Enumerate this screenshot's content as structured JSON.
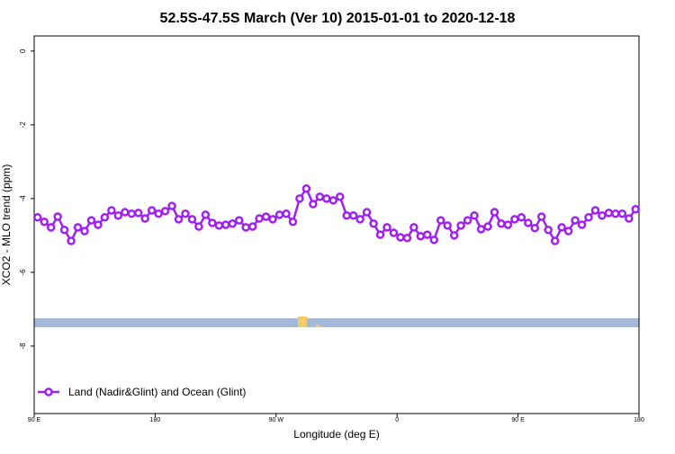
{
  "chart_data": {
    "type": "line",
    "title": "52.5S-47.5S March (Ver 10)   2015-01-01 to 2020-12-18",
    "x_label": "Longitude (deg E)",
    "y_label": "XCO2 - MLO trend (ppm)",
    "x": [
      92.5,
      97.5,
      102.5,
      107.5,
      112.5,
      117.5,
      122.5,
      127.5,
      132.5,
      137.5,
      142.5,
      147.5,
      152.5,
      157.5,
      162.5,
      167.5,
      172.5,
      177.5,
      182.5,
      187.5,
      192.5,
      197.5,
      202.5,
      207.5,
      212.5,
      217.5,
      222.5,
      227.5,
      232.5,
      237.5,
      242.5,
      247.5,
      252.5,
      257.5,
      262.5,
      267.5,
      272.5,
      277.5,
      282.5,
      287.5,
      292.5,
      297.5,
      302.5,
      307.5,
      312.5,
      317.5,
      322.5,
      327.5,
      332.5,
      337.5,
      342.5,
      347.5,
      352.5,
      357.5,
      362.5,
      367.5,
      372.5,
      377.5,
      382.5,
      387.5,
      392.5,
      397.5,
      402.5,
      407.5,
      412.5,
      417.5,
      422.5,
      427.5,
      432.5,
      437.5,
      442.5,
      447.5,
      452.5,
      457.5,
      462.5,
      467.5,
      472.5,
      477.5,
      482.5,
      487.5,
      492.5,
      497.5,
      502.5,
      507.5,
      512.5,
      517.5,
      522.5,
      527.5,
      532.5,
      537.5
    ],
    "series": [
      {
        "name": "Land (Nadir&Glint) and Ocean (Glint)",
        "color": "#a020f0",
        "values": [
          -4.51,
          -4.63,
          -4.78,
          -4.49,
          -4.85,
          -5.15,
          -4.78,
          -4.88,
          -4.59,
          -4.71,
          -4.51,
          -4.32,
          -4.46,
          -4.37,
          -4.41,
          -4.39,
          -4.54,
          -4.32,
          -4.41,
          -4.34,
          -4.2,
          -4.56,
          -4.41,
          -4.56,
          -4.76,
          -4.44,
          -4.66,
          -4.73,
          -4.71,
          -4.68,
          -4.59,
          -4.78,
          -4.76,
          -4.54,
          -4.49,
          -4.56,
          -4.44,
          -4.41,
          -4.63,
          -4.0,
          -3.73,
          -4.15,
          -3.95,
          -4.0,
          -4.05,
          -3.95,
          -4.46,
          -4.46,
          -4.56,
          -4.37,
          -4.68,
          -4.98,
          -4.78,
          -4.93,
          -5.05,
          -5.07,
          -4.78,
          -5.02,
          -4.98,
          -5.12,
          -4.59,
          -4.73,
          -5.0,
          -4.73,
          -4.59,
          -4.46,
          -4.83,
          -4.76,
          -4.37,
          -4.68,
          -4.71,
          -4.56,
          -4.51,
          -4.66,
          -4.8,
          -4.49,
          -4.85,
          -5.15,
          -4.78,
          -4.88,
          -4.59,
          -4.71,
          -4.51,
          -4.32,
          -4.46,
          -4.39,
          -4.41,
          -4.41,
          -4.54,
          -4.29
        ]
      }
    ],
    "xlim": [
      90,
      540
    ],
    "xticks": [
      {
        "value": 90,
        "label": "90 E"
      },
      {
        "value": 180,
        "label": "180"
      },
      {
        "value": 270,
        "label": "90 W"
      },
      {
        "value": 360,
        "label": "0"
      },
      {
        "value": 450,
        "label": "90 E"
      },
      {
        "value": 540,
        "label": "180"
      }
    ],
    "ylim": [
      -9.83,
      0.41
    ],
    "yticks": [
      0,
      -2,
      -4,
      -6,
      -8
    ],
    "legend_position": "bottom-left"
  }
}
